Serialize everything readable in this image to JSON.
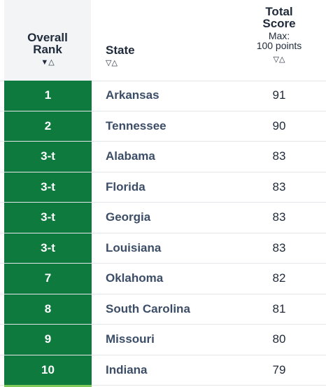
{
  "header": {
    "rank_title_line1": "Overall",
    "rank_title_line2": "Rank",
    "rank_sort": "▼△",
    "state_title": "State",
    "state_sort": "▽△",
    "score_title_line1": "Total",
    "score_title_line2": "Score",
    "score_sub_line1": "Max:",
    "score_sub_line2": "100 points",
    "score_sort": "▽△"
  },
  "colors": {
    "rank_bg": "#0e7a3e",
    "accent_strip": "#7ec95a",
    "state_text": "#3c4d67"
  },
  "rows": [
    {
      "rank": "1",
      "state": "Arkansas",
      "score": "91"
    },
    {
      "rank": "2",
      "state": "Tennessee",
      "score": "90"
    },
    {
      "rank": "3-t",
      "state": "Alabama",
      "score": "83"
    },
    {
      "rank": "3-t",
      "state": "Florida",
      "score": "83"
    },
    {
      "rank": "3-t",
      "state": "Georgia",
      "score": "83"
    },
    {
      "rank": "3-t",
      "state": "Louisiana",
      "score": "83"
    },
    {
      "rank": "7",
      "state": "Oklahoma",
      "score": "82"
    },
    {
      "rank": "8",
      "state": "South Carolina",
      "score": "81"
    },
    {
      "rank": "9",
      "state": "Missouri",
      "score": "80"
    },
    {
      "rank": "10",
      "state": "Indiana",
      "score": "79"
    }
  ]
}
